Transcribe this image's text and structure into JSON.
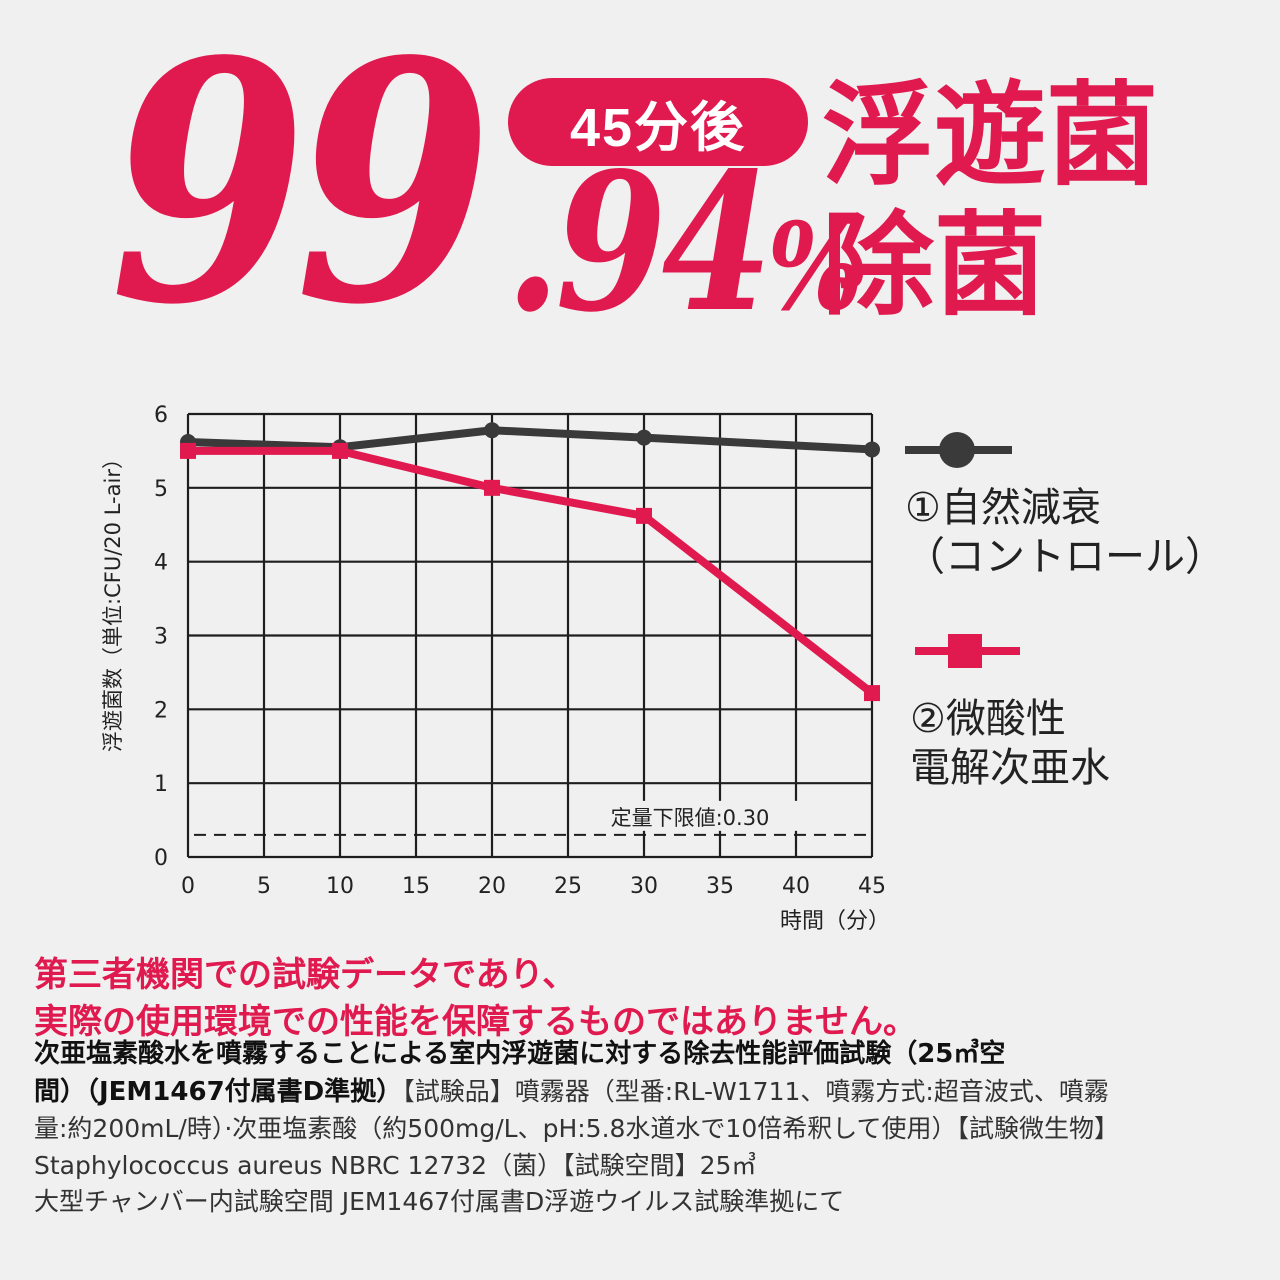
{
  "headline": {
    "percent_int": "99",
    "percent_dec": ".94",
    "percent_sign": "%",
    "time_badge": "45分後",
    "claim_line1": "浮遊菌",
    "claim_line2": "除菌"
  },
  "colors": {
    "accent": "#e01a4f",
    "control_series": "#3a3a3a",
    "background": "#f0f0f0"
  },
  "chart_data": {
    "type": "line",
    "ylabel": "浮遊菌数（単位:CFU/20 L-air）",
    "xlabel": "時間（分）",
    "xlim": [
      0,
      45
    ],
    "ylim": [
      0,
      6
    ],
    "x_ticks": [
      0,
      5,
      10,
      15,
      20,
      25,
      30,
      35,
      40,
      45
    ],
    "y_ticks": [
      0,
      1,
      2,
      3,
      4,
      5,
      6
    ],
    "grid": true,
    "legend_placement": "right",
    "series": [
      {
        "name_line1": "①自然減衰",
        "name_line2": "（コントロール）",
        "marker": "circle",
        "color": "#3a3a3a",
        "points": [
          [
            0,
            5.62
          ],
          [
            10,
            5.55
          ],
          [
            20,
            5.78
          ],
          [
            30,
            5.68
          ],
          [
            45,
            5.52
          ]
        ]
      },
      {
        "name_line1": "②微酸性",
        "name_line2": "電解次亜水",
        "marker": "square",
        "color": "#e01a4f",
        "points": [
          [
            0,
            5.5
          ],
          [
            10,
            5.5
          ],
          [
            20,
            5.0
          ],
          [
            30,
            4.62
          ],
          [
            45,
            2.22
          ]
        ]
      }
    ],
    "reference_line": {
      "y": 0.3,
      "label": "定量下限値:0.30"
    }
  },
  "notes": {
    "disclaimer_line1": "第三者機関での試験データであり、",
    "disclaimer_line2": "実際の使用環境での性能を保障するものではありません。",
    "test_title_a": "次亜塩素酸水を噴霧することによる室内浮遊菌に対する除去性能評価試験（25㎥空",
    "test_title_b": "間）（JEM1467付属書D準拠）",
    "detail_a": "【試験品】噴霧器（型番:RL-W1711、噴霧方式:超音波式、噴霧",
    "detail_b": "量:約200mL/時）·次亜塩素酸（約500mg/L、pH:5.8水道水で10倍希釈して使用）【試験微生物】",
    "detail_c": "Staphylococcus aureus NBRC 12732（菌）【試験空間】25㎥",
    "detail_d": "大型チャンバー内試験空間 JEM1467付属書D浮遊ウイルス試験準拠にて"
  }
}
